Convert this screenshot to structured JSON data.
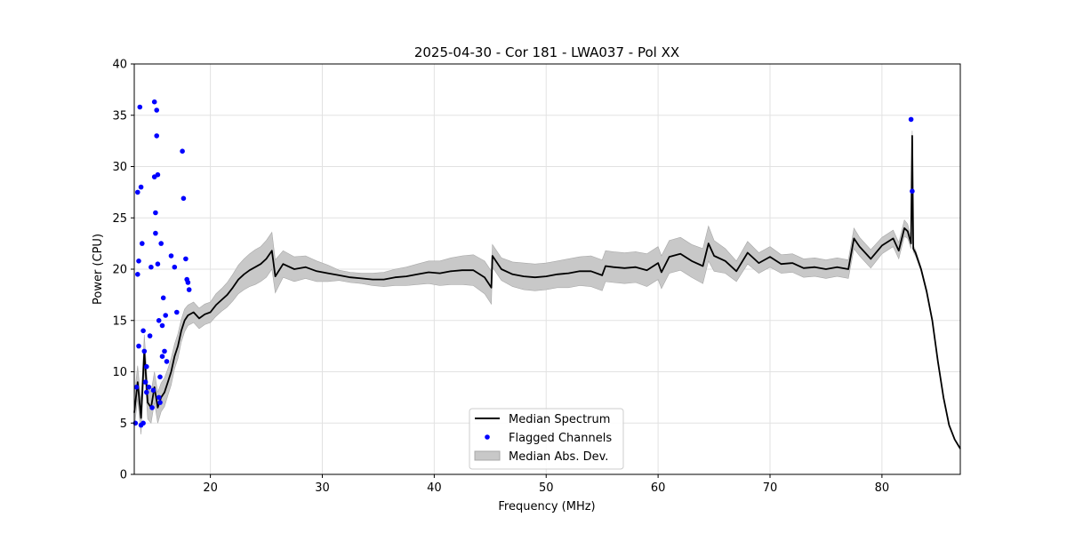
{
  "chart_data": {
    "type": "line",
    "title": "2025-04-30 - Cor 181 - LWA037 - Pol XX",
    "xlabel": "Frequency (MHz)",
    "ylabel": "Power (CPU)",
    "xlim": [
      13.2,
      87.0
    ],
    "ylim": [
      0,
      40
    ],
    "xticks": [
      20,
      30,
      40,
      50,
      60,
      70,
      80
    ],
    "yticks": [
      0,
      5,
      10,
      15,
      20,
      25,
      30,
      35,
      40
    ],
    "grid": true,
    "legend_position": "lower center",
    "legend": [
      {
        "label": "Median Spectrum",
        "kind": "line",
        "color": "#000000"
      },
      {
        "label": "Flagged Channels",
        "kind": "point",
        "color": "#0000ff"
      },
      {
        "label": "Median Abs. Dev.",
        "kind": "band",
        "color": "#c8c8c8"
      }
    ],
    "series": [
      {
        "name": "Median Spectrum",
        "color": "#000000",
        "band_color": "#c8c8c8",
        "x": [
          13.2,
          13.5,
          13.8,
          14.1,
          14.4,
          14.7,
          15.0,
          15.3,
          15.6,
          15.9,
          16.2,
          16.5,
          16.8,
          17.1,
          17.4,
          17.7,
          18.0,
          18.5,
          19.0,
          19.5,
          20.0,
          20.5,
          21.0,
          21.5,
          22.0,
          22.5,
          23.0,
          23.5,
          24.0,
          24.5,
          25.0,
          25.5,
          25.8,
          26.5,
          27.5,
          28.5,
          29.5,
          30.5,
          31.5,
          32.5,
          33.5,
          34.5,
          35.5,
          36.5,
          37.5,
          38.5,
          39.5,
          40.5,
          41.5,
          42.5,
          43.5,
          44.5,
          45.1,
          45.2,
          46.0,
          47.0,
          48.0,
          49.0,
          50.0,
          51.0,
          52.0,
          53.0,
          54.0,
          55.0,
          55.3,
          56.0,
          57.0,
          58.0,
          59.0,
          60.0,
          60.3,
          61.0,
          62.0,
          63.0,
          64.0,
          64.5,
          65.0,
          66.0,
          67.0,
          68.0,
          69.0,
          70.0,
          71.0,
          72.0,
          73.0,
          74.0,
          75.0,
          76.0,
          77.0,
          77.5,
          78.0,
          79.0,
          80.0,
          81.0,
          81.5,
          82.0,
          82.3,
          82.6,
          82.7,
          82.8,
          83.0,
          83.5,
          84.0,
          84.5,
          85.0,
          85.5,
          86.0,
          86.5,
          87.0
        ],
        "y": [
          6.0,
          9.0,
          5.5,
          12.0,
          7.0,
          6.5,
          8.5,
          6.5,
          7.5,
          8.0,
          9.0,
          10.0,
          11.5,
          12.5,
          14.0,
          15.0,
          15.5,
          15.8,
          15.2,
          15.6,
          15.8,
          16.5,
          17.0,
          17.5,
          18.2,
          19.0,
          19.5,
          19.9,
          20.2,
          20.5,
          21.0,
          21.8,
          19.3,
          20.5,
          20.0,
          20.2,
          19.8,
          19.6,
          19.4,
          19.2,
          19.1,
          19.0,
          19.0,
          19.2,
          19.3,
          19.5,
          19.7,
          19.6,
          19.8,
          19.9,
          19.9,
          19.2,
          18.2,
          21.3,
          20.0,
          19.5,
          19.3,
          19.2,
          19.3,
          19.5,
          19.6,
          19.8,
          19.8,
          19.4,
          20.3,
          20.2,
          20.1,
          20.2,
          19.9,
          20.6,
          19.7,
          21.2,
          21.5,
          20.8,
          20.3,
          22.5,
          21.3,
          20.8,
          19.8,
          21.6,
          20.6,
          21.2,
          20.5,
          20.6,
          20.1,
          20.2,
          20.0,
          20.2,
          20.0,
          23.0,
          22.2,
          21.0,
          22.3,
          23.0,
          21.8,
          24.0,
          23.7,
          22.5,
          33.0,
          22.0,
          21.6,
          20.0,
          17.8,
          15.0,
          11.0,
          7.5,
          4.8,
          3.4,
          2.5
        ],
        "spread": [
          1.6,
          1.6,
          1.6,
          1.6,
          1.6,
          1.5,
          1.5,
          1.5,
          1.4,
          1.4,
          1.3,
          1.3,
          1.2,
          1.2,
          1.1,
          1.1,
          1.0,
          1.0,
          1.0,
          1.0,
          1.0,
          1.1,
          1.1,
          1.2,
          1.3,
          1.4,
          1.5,
          1.6,
          1.7,
          1.7,
          1.8,
          1.8,
          1.6,
          1.3,
          1.2,
          1.1,
          1.0,
          0.8,
          0.5,
          0.5,
          0.5,
          0.6,
          0.7,
          0.8,
          0.9,
          1.0,
          1.1,
          1.2,
          1.3,
          1.4,
          1.5,
          1.6,
          1.6,
          1.1,
          1.1,
          1.2,
          1.3,
          1.3,
          1.3,
          1.3,
          1.4,
          1.4,
          1.5,
          1.5,
          1.5,
          1.5,
          1.5,
          1.5,
          1.6,
          1.6,
          1.6,
          1.6,
          1.6,
          1.6,
          1.7,
          1.7,
          1.5,
          1.2,
          1.0,
          1.1,
          1.0,
          1.0,
          0.9,
          0.9,
          0.9,
          0.9,
          0.9,
          0.9,
          0.9,
          1.0,
          0.9,
          0.9,
          0.8,
          0.8,
          0.8,
          0.8,
          0.7,
          0.5,
          0.5,
          0.3,
          0.3,
          0.2,
          0.2,
          0.1,
          0.1,
          0.0,
          0.0,
          0.0,
          0.0
        ]
      },
      {
        "name": "Flagged Channels",
        "color": "#0000ff",
        "x": [
          13.3,
          13.4,
          13.5,
          13.5,
          13.6,
          13.6,
          13.7,
          13.8,
          13.8,
          13.9,
          14.0,
          14.0,
          14.1,
          14.2,
          14.3,
          14.3,
          14.5,
          14.6,
          14.7,
          14.8,
          14.9,
          15.0,
          15.0,
          15.1,
          15.1,
          15.2,
          15.2,
          15.3,
          15.3,
          15.4,
          15.4,
          15.5,
          15.5,
          15.6,
          15.7,
          15.7,
          15.8,
          15.9,
          16.0,
          16.1,
          16.5,
          16.8,
          17.0,
          17.5,
          17.6,
          17.8,
          17.9,
          18.0,
          18.1,
          82.6,
          82.7
        ],
        "y": [
          5.0,
          8.5,
          19.5,
          27.5,
          12.5,
          20.8,
          35.8,
          28.0,
          4.8,
          22.5,
          14.0,
          5.0,
          12.0,
          9.0,
          10.5,
          8.0,
          8.5,
          13.5,
          20.2,
          6.5,
          8.2,
          29.0,
          36.3,
          25.5,
          23.5,
          35.5,
          33.0,
          29.2,
          20.5,
          15.0,
          7.5,
          9.5,
          7.0,
          22.5,
          14.5,
          11.5,
          17.2,
          12.0,
          15.5,
          11.0,
          21.3,
          20.2,
          15.8,
          31.5,
          26.9,
          21.0,
          19.0,
          18.7,
          18.0,
          34.6,
          27.6
        ]
      }
    ]
  }
}
